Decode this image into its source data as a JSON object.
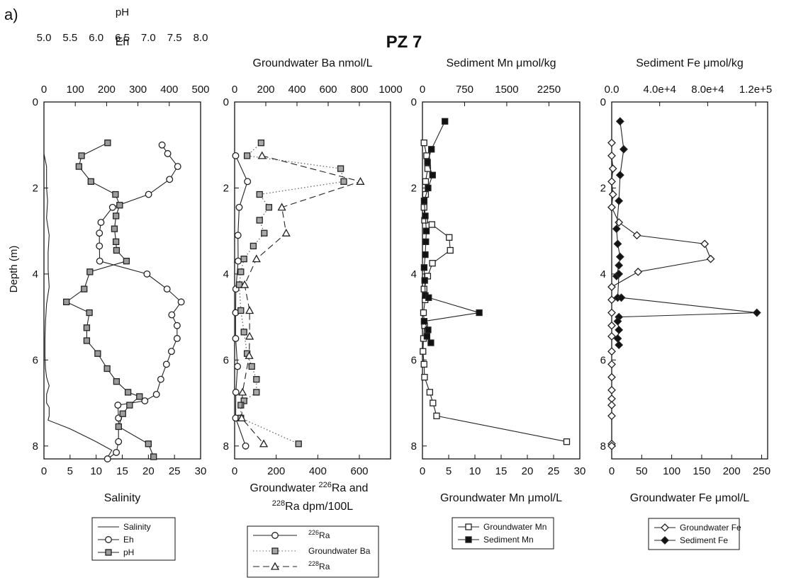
{
  "figure_label": "a)",
  "title": "PZ 7",
  "depth_label": "Depth (m)",
  "chart_data": [
    {
      "type": "line",
      "panel": "salinity-eh-ph",
      "ylabel": "Depth (m)",
      "ylim": [
        0,
        8.3
      ],
      "yticks": [
        0,
        2,
        4,
        6,
        8
      ],
      "y_reversed": true,
      "x_bottom": {
        "label": "Salinity",
        "lim": [
          0,
          30
        ],
        "ticks": [
          0,
          5,
          10,
          15,
          20,
          25,
          30
        ]
      },
      "x_top": {
        "label": "Eh",
        "lim": [
          0,
          500
        ],
        "ticks": [
          0,
          100,
          200,
          300,
          400,
          500
        ]
      },
      "x_top2": {
        "label": "pH",
        "lim": [
          5.0,
          8.0
        ],
        "ticks": [
          "5.0",
          "5.5",
          "6.0",
          "6.5",
          "7.0",
          "7.5",
          "8.0"
        ]
      },
      "legend": [
        "Salinity",
        "Eh",
        "pH"
      ],
      "series": [
        {
          "name": "Salinity",
          "axis": "bottom",
          "marker": "none",
          "style": "solid",
          "x": [
            0,
            0,
            0.5,
            0.5,
            0.7,
            0.5,
            1,
            0.8,
            0.8,
            1,
            0.5,
            0.3,
            0.2,
            0.2,
            0.3,
            0.5,
            1,
            0.5,
            0.5,
            1,
            1,
            0.8,
            5,
            10,
            13,
            12
          ],
          "y": [
            0,
            1.2,
            1.5,
            2.0,
            2.3,
            2.7,
            3.1,
            3.5,
            3.9,
            4.3,
            4.7,
            5.1,
            5.5,
            5.9,
            6.2,
            6.4,
            6.6,
            6.8,
            7.0,
            7.1,
            7.3,
            7.4,
            7.6,
            7.9,
            8.1,
            8.3
          ]
        },
        {
          "name": "Eh",
          "axis": "top",
          "marker": "circle",
          "style": "solid",
          "x": [
            377,
            395,
            427,
            401,
            334,
            219,
            182,
            177,
            177,
            178,
            329,
            393,
            438,
            408,
            425,
            425,
            407,
            391,
            373,
            359,
            322,
            236,
            238,
            238,
            231,
            203
          ],
          "y": [
            1.0,
            1.2,
            1.5,
            1.8,
            2.15,
            2.45,
            2.8,
            3.05,
            3.35,
            3.7,
            4.0,
            4.35,
            4.65,
            4.95,
            5.2,
            5.5,
            5.8,
            6.1,
            6.45,
            6.8,
            6.95,
            7.05,
            7.35,
            7.9,
            8.15,
            8.3
          ]
        },
        {
          "name": "pH",
          "axis": "top2",
          "marker": "square",
          "style": "solid",
          "x": [
            6.22,
            5.72,
            5.67,
            5.9,
            6.37,
            6.45,
            6.38,
            6.35,
            6.38,
            6.39,
            6.58,
            5.88,
            5.77,
            5.43,
            5.87,
            5.82,
            5.82,
            6.03,
            6.21,
            6.39,
            6.61,
            6.83,
            6.64,
            6.51,
            6.43,
            7.0,
            7.1
          ],
          "y": [
            0.95,
            1.25,
            1.5,
            1.85,
            2.15,
            2.4,
            2.65,
            2.95,
            3.25,
            3.45,
            3.7,
            3.95,
            4.35,
            4.65,
            4.9,
            5.25,
            5.55,
            5.85,
            6.2,
            6.5,
            6.75,
            6.85,
            7.05,
            7.25,
            7.55,
            7.95,
            8.25
          ]
        }
      ]
    },
    {
      "type": "line",
      "panel": "radium-barium",
      "ylim": [
        0,
        8.3
      ],
      "yticks": [
        0,
        2,
        4,
        6,
        8
      ],
      "y_reversed": true,
      "x_top": {
        "label": "Groundwater Ba nmol/L",
        "lim": [
          0,
          1000
        ],
        "ticks": [
          0,
          200,
          400,
          600,
          800,
          1000
        ]
      },
      "x_bottom": {
        "label_pre": "Groundwater ",
        "label_sup1": "226",
        "label_mid": "Ra and",
        "label_sup2": "228",
        "label_post": "Ra dpm/100L",
        "lim": [
          0,
          750
        ],
        "ticks": [
          0,
          200,
          400,
          600
        ]
      },
      "legend": [
        {
          "sup": "226",
          "text": "Ra"
        },
        {
          "sup": "",
          "text": "Groundwater Ba"
        },
        {
          "sup": "228",
          "text": "Ra"
        }
      ],
      "series": [
        {
          "name": "226Ra",
          "axis": "bottom",
          "marker": "circle",
          "style": "solid",
          "x": [
            5,
            62,
            22,
            16,
            17,
            6,
            5,
            5,
            14,
            6,
            5,
            53
          ],
          "y": [
            1.25,
            1.85,
            2.45,
            3.1,
            3.7,
            4.35,
            4.9,
            5.5,
            6.15,
            6.75,
            7.35,
            8.0
          ]
        },
        {
          "name": "Groundwater Ba",
          "axis": "top",
          "marker": "square",
          "style": "dotted",
          "x": [
            170,
            80,
            680,
            700,
            160,
            220,
            160,
            190,
            120,
            60,
            40,
            30,
            40,
            60,
            80,
            110,
            140,
            140,
            60,
            40,
            40,
            410
          ],
          "y": [
            0.95,
            1.25,
            1.55,
            1.85,
            2.15,
            2.45,
            2.75,
            3.05,
            3.35,
            3.65,
            3.95,
            4.25,
            4.85,
            5.35,
            5.85,
            6.15,
            6.45,
            6.75,
            6.95,
            7.05,
            7.35,
            7.95
          ]
        },
        {
          "name": "228Ra",
          "axis": "bottom",
          "marker": "triangle",
          "style": "dashed",
          "x": [
            132,
            605,
            227,
            248,
            105,
            48,
            72,
            72,
            70,
            38,
            34,
            140
          ],
          "y": [
            1.25,
            1.85,
            2.45,
            3.05,
            3.65,
            4.25,
            4.85,
            5.45,
            5.9,
            6.75,
            7.35,
            7.95
          ]
        }
      ]
    },
    {
      "type": "line",
      "panel": "manganese",
      "ylim": [
        0,
        8.3
      ],
      "yticks": [
        0,
        2,
        4,
        6,
        8
      ],
      "y_reversed": true,
      "x_top": {
        "label": "Sediment Mn μmol/kg",
        "lim": [
          0,
          2800
        ],
        "ticks": [
          0,
          750,
          1500,
          2250
        ]
      },
      "x_bottom": {
        "label": "Groundwater Mn μmol/L",
        "lim": [
          0,
          30
        ],
        "ticks": [
          0,
          5,
          10,
          15,
          20,
          25,
          30
        ]
      },
      "legend": [
        "Groundwater Mn",
        "Sediment Mn"
      ],
      "series": [
        {
          "name": "Groundwater Mn",
          "axis": "bottom",
          "marker": "square",
          "style": "solid",
          "x": [
            0.3,
            0.8,
            1.0,
            0.6,
            0.6,
            0.3,
            0.4,
            1.8,
            5.1,
            5.3,
            1.9,
            1.0,
            0.3,
            0.5,
            0.2,
            0.4,
            0.2,
            0.1,
            0.3,
            0.4,
            1.4,
            2.0,
            2.7,
            27.5
          ],
          "y": [
            0.95,
            1.25,
            1.55,
            1.85,
            2.15,
            2.45,
            2.75,
            2.85,
            3.15,
            3.45,
            3.75,
            4.05,
            4.35,
            4.6,
            4.9,
            5.2,
            5.5,
            5.8,
            6.1,
            6.4,
            6.75,
            7.0,
            7.3,
            7.9
          ]
        },
        {
          "name": "Sediment Mn",
          "axis": "top",
          "marker": "filled-square",
          "style": "solid",
          "x": [
            400,
            160,
            90,
            180,
            100,
            30,
            50,
            70,
            60,
            50,
            30,
            40,
            50,
            110,
            1010,
            30,
            100,
            80,
            150
          ],
          "y": [
            0.45,
            1.1,
            1.4,
            1.7,
            2.0,
            2.3,
            2.65,
            3.0,
            3.25,
            3.55,
            3.85,
            4.15,
            4.5,
            4.55,
            4.9,
            5.1,
            5.3,
            5.45,
            5.6
          ]
        }
      ]
    },
    {
      "type": "line",
      "panel": "iron",
      "ylim": [
        0,
        8.3
      ],
      "yticks": [
        0,
        2,
        4,
        6,
        8
      ],
      "y_reversed": true,
      "x_top": {
        "label": "Sediment Fe μmol/kg",
        "lim": [
          0,
          130000
        ],
        "ticks": [
          "0.0",
          "4.0e+4",
          "8.0e+4",
          "1.2e+5"
        ]
      },
      "x_bottom": {
        "label": "Groundwater Fe μmol/L",
        "lim": [
          0,
          260
        ],
        "ticks": [
          0,
          50,
          100,
          150,
          200,
          250
        ]
      },
      "legend": [
        "Groundwater Fe",
        "Sediment Fe"
      ],
      "series": [
        {
          "name": "Groundwater Fe",
          "axis": "bottom",
          "marker": "diamond",
          "style": "solid",
          "x": [
            0,
            0,
            2,
            0,
            2,
            0,
            12,
            42,
            155,
            165,
            44,
            0,
            0,
            0,
            0,
            0,
            0,
            0,
            0,
            0,
            0,
            0,
            0,
            0,
            0
          ],
          "y": [
            0.95,
            1.25,
            1.55,
            1.85,
            2.15,
            2.45,
            2.8,
            3.1,
            3.3,
            3.65,
            3.95,
            4.3,
            4.6,
            4.9,
            5.2,
            5.45,
            5.8,
            6.1,
            6.4,
            6.7,
            6.9,
            7.05,
            7.3,
            7.95,
            8.0
          ]
        },
        {
          "name": "Sediment Fe",
          "axis": "top",
          "marker": "filled-diamond",
          "style": "solid",
          "x": [
            7000,
            10000,
            7000,
            6000,
            4000,
            5000,
            7000,
            6000,
            4000,
            6000,
            5000,
            8000,
            121000,
            6000,
            5000,
            6000,
            5000,
            6000
          ],
          "y": [
            0.45,
            1.1,
            1.7,
            2.3,
            2.95,
            3.3,
            3.6,
            3.8,
            4.05,
            4.0,
            4.55,
            4.55,
            4.9,
            5.0,
            5.1,
            5.3,
            5.5,
            5.65
          ]
        }
      ]
    }
  ]
}
